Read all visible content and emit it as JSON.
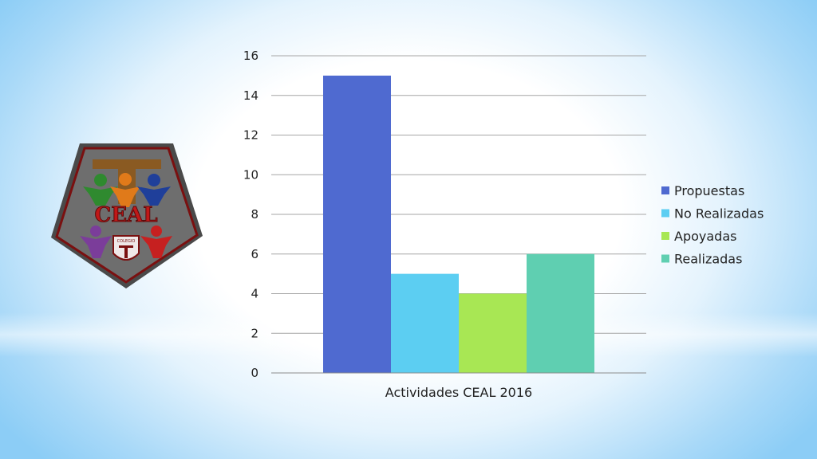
{
  "logo": {
    "text": "CEAL",
    "small_text": "COLEGIO"
  },
  "colors": {
    "background_edge": "#8ccdf6",
    "grid": "#a6a6a6",
    "series": [
      "#4f6ad0",
      "#5ccef2",
      "#a8e754",
      "#5fcfb1"
    ]
  },
  "chart_data": {
    "type": "bar",
    "categories": [
      "Actividades CEAL 2016"
    ],
    "series": [
      {
        "name": "Propuestas",
        "values": [
          15
        ]
      },
      {
        "name": "No Realizadas",
        "values": [
          5
        ]
      },
      {
        "name": "Apoyadas",
        "values": [
          4
        ]
      },
      {
        "name": "Realizadas",
        "values": [
          6
        ]
      }
    ],
    "y_ticks": [
      "0",
      "2",
      "4",
      "6",
      "8",
      "10",
      "12",
      "14",
      "16"
    ],
    "ylim": [
      0,
      16
    ],
    "grid": true,
    "legend": "right"
  }
}
